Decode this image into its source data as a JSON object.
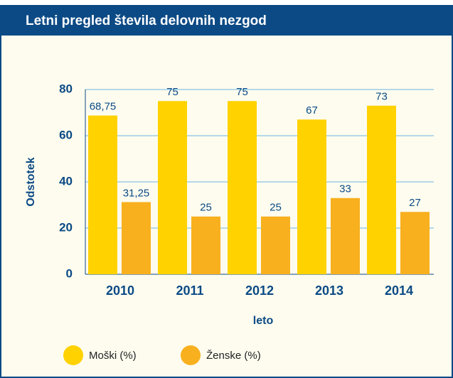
{
  "chart_data": {
    "type": "bar",
    "title": "Letni pregled števila delovnih nezgod",
    "y_label": "Odstotek",
    "x_label": "leto",
    "categories": [
      "2010",
      "2011",
      "2012",
      "2013",
      "2014"
    ],
    "series": [
      {
        "name": "Moški (%)",
        "color": "#ffd200",
        "values": [
          68.75,
          75,
          75,
          67,
          73
        ],
        "value_labels": [
          "68,75",
          "75",
          "75",
          "67",
          "73"
        ]
      },
      {
        "name": "Ženske (%)",
        "color": "#f8b01e",
        "values": [
          31.25,
          25,
          25,
          33,
          27
        ],
        "value_labels": [
          "31,25",
          "25",
          "25",
          "33",
          "27"
        ]
      }
    ],
    "ylim": [
      0,
      80
    ],
    "yticks": [
      0,
      20,
      40,
      60,
      80
    ],
    "grid": true
  }
}
